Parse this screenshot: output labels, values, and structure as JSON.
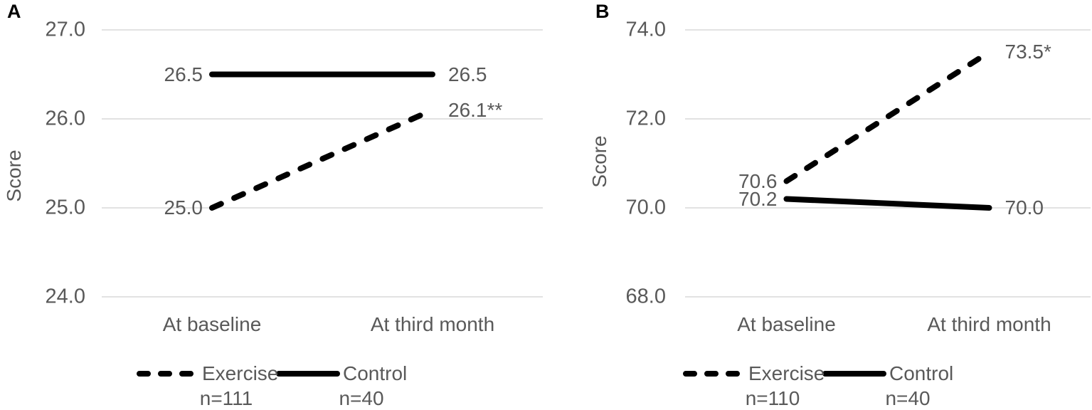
{
  "chart_data": [
    {
      "type": "line",
      "panel_label": "A",
      "ylabel": "Score",
      "x": [
        "At baseline",
        "At third month"
      ],
      "ylim": [
        24.0,
        27.0
      ],
      "yticks": [
        27.0,
        26.0,
        25.0,
        24.0
      ],
      "ytick_labels": [
        "27.0",
        "26.0",
        "25.0",
        "24.0"
      ],
      "grid": true,
      "legend_position": "bottom",
      "series": [
        {
          "name": "Exercise",
          "n_label": "n=111",
          "line_style": "dashed",
          "values": [
            25.0,
            26.1
          ],
          "point_labels": [
            "25.0",
            "26.1**"
          ]
        },
        {
          "name": "Control",
          "n_label": "n=40",
          "line_style": "solid",
          "values": [
            26.5,
            26.5
          ],
          "point_labels": [
            "26.5",
            "26.5"
          ]
        }
      ]
    },
    {
      "type": "line",
      "panel_label": "B",
      "ylabel": "Score",
      "x": [
        "At baseline",
        "At third month"
      ],
      "ylim": [
        68.0,
        74.0
      ],
      "yticks": [
        74.0,
        72.0,
        70.0,
        68.0
      ],
      "ytick_labels": [
        "74.0",
        "72.0",
        "70.0",
        "68.0"
      ],
      "grid": true,
      "legend_position": "bottom",
      "series": [
        {
          "name": "Exercise",
          "n_label": "n=110",
          "line_style": "dashed",
          "values": [
            70.6,
            73.5
          ],
          "point_labels": [
            "70.6",
            "73.5*"
          ]
        },
        {
          "name": "Control",
          "n_label": "n=40",
          "line_style": "solid",
          "values": [
            70.2,
            70.0
          ],
          "point_labels": [
            "70.2",
            "70.0"
          ]
        }
      ]
    }
  ],
  "colors": {
    "line": "#000000",
    "text": "#595959",
    "gridline": "#d9d9d9",
    "panel_letter": "#000000",
    "background": "#ffffff"
  }
}
